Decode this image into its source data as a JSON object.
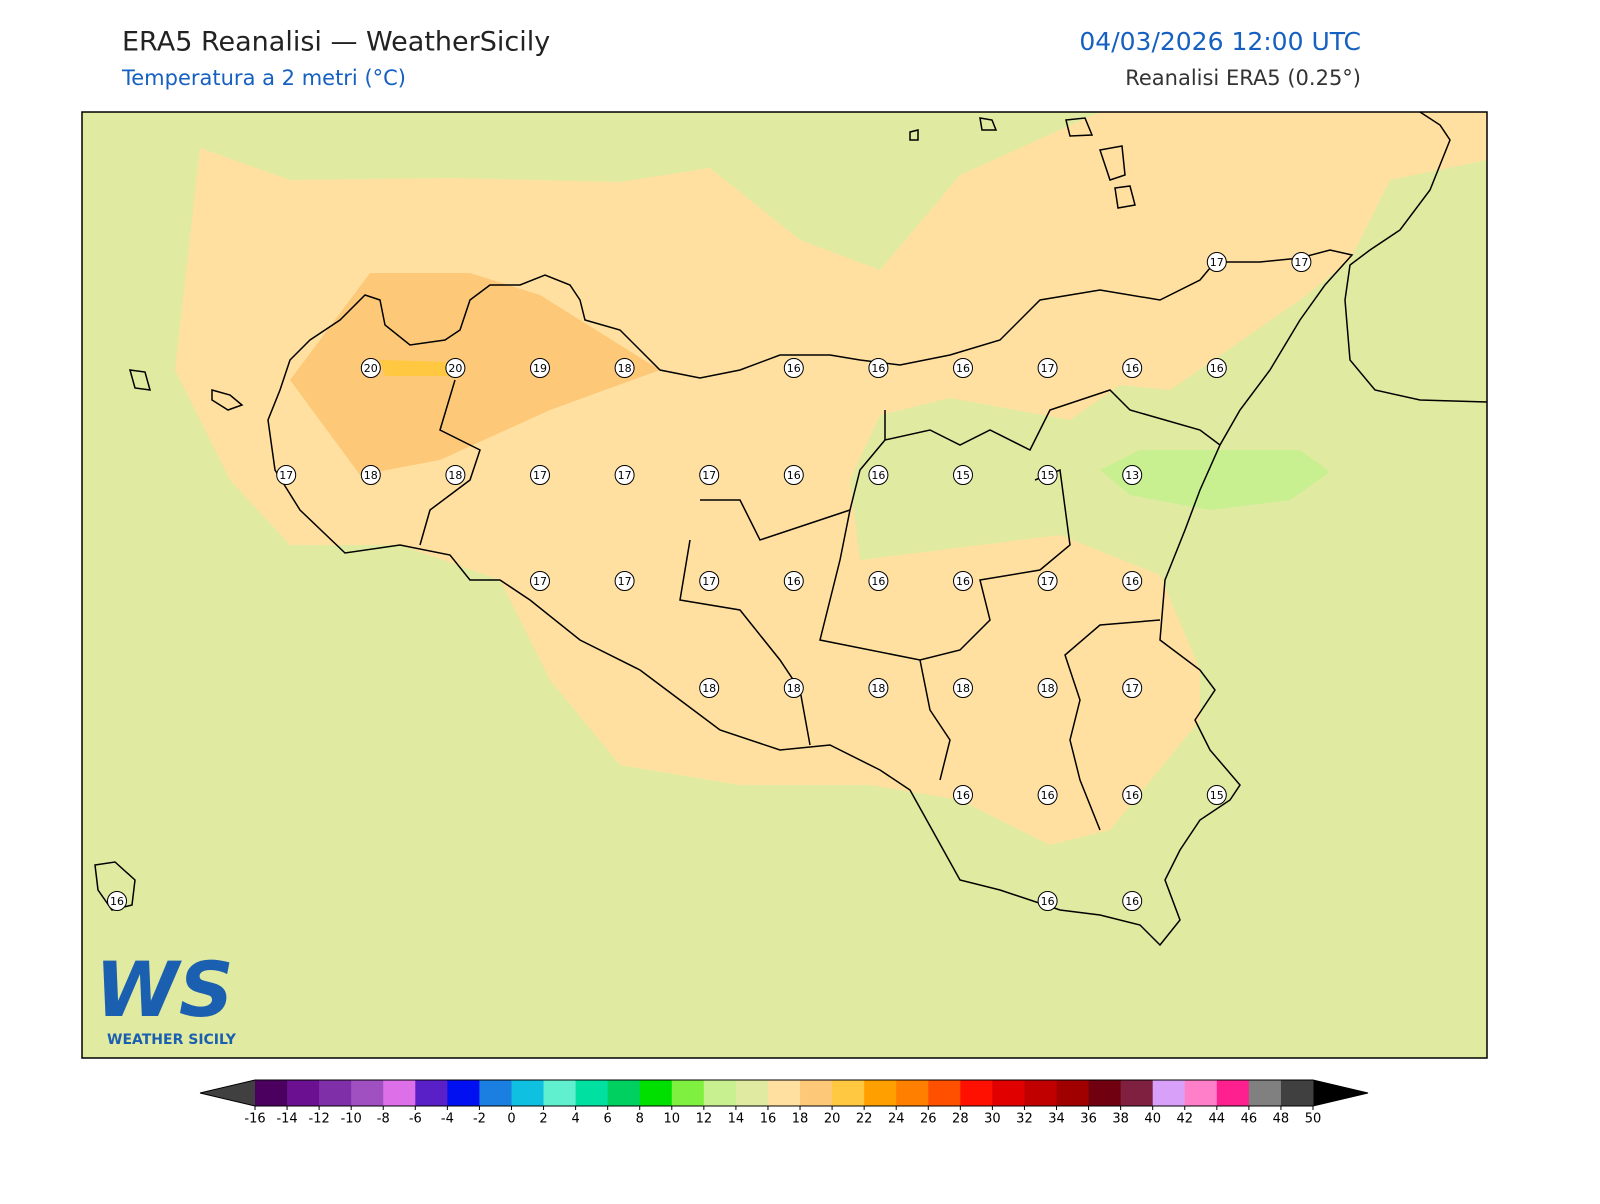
{
  "header": {
    "title": "ERA5 Reanalisi — WeatherSicily",
    "subtitle": "Temperatura a 2 metri (°C)",
    "datetime": "04/03/2026 12:00 UTC",
    "source": "Reanalisi ERA5 (0.25°)"
  },
  "stations": [
    [
      null,
      null,
      null,
      null,
      null,
      null,
      null,
      null,
      null,
      null,
      null,
      null,
      null,
      17,
      17
    ],
    [
      null,
      null,
      null,
      20,
      20,
      19,
      18,
      null,
      16,
      16,
      16,
      17,
      16,
      16,
      null
    ],
    [
      null,
      null,
      17,
      18,
      18,
      17,
      17,
      17,
      16,
      16,
      15,
      15,
      13,
      null,
      null
    ],
    [
      null,
      null,
      null,
      null,
      null,
      17,
      17,
      17,
      16,
      16,
      16,
      17,
      16,
      null,
      null
    ],
    [
      null,
      null,
      null,
      null,
      null,
      null,
      null,
      18,
      18,
      18,
      18,
      18,
      17,
      null,
      null
    ],
    [
      null,
      null,
      null,
      null,
      null,
      null,
      null,
      null,
      null,
      null,
      16,
      16,
      16,
      15,
      null
    ],
    [
      16,
      null,
      null,
      null,
      null,
      null,
      null,
      null,
      null,
      null,
      null,
      16,
      16,
      null,
      null
    ]
  ],
  "colorbar": {
    "ticks": [
      -16,
      -14,
      -12,
      -10,
      -8,
      -6,
      -4,
      -2,
      0,
      2,
      4,
      6,
      8,
      10,
      12,
      14,
      16,
      18,
      20,
      22,
      24,
      26,
      28,
      30,
      32,
      34,
      36,
      38,
      40,
      42,
      44,
      46,
      48,
      50
    ],
    "colors": [
      "#4b0060",
      "#6a1090",
      "#7f30a8",
      "#a050c0",
      "#dd70e8",
      "#5a20c8",
      "#0010f0",
      "#1a7fe0",
      "#10c0e0",
      "#60f0d0",
      "#00e0a0",
      "#00d060",
      "#00e000",
      "#80f040",
      "#c8f090",
      "#e0eaa0",
      "#ffe0a0",
      "#fdc978",
      "#ffc840",
      "#ffa000",
      "#ff8000",
      "#ff5000",
      "#ff1000",
      "#e00000",
      "#c00000",
      "#a00000",
      "#700010",
      "#802040",
      "#d8a0f8",
      "#ff80c8",
      "#ff2090",
      "#808080",
      "#404040"
    ],
    "under_color": "#404040",
    "over_color": "#000000"
  },
  "logo": {
    "mark": "WS",
    "name": "WEATHER SICILY"
  }
}
